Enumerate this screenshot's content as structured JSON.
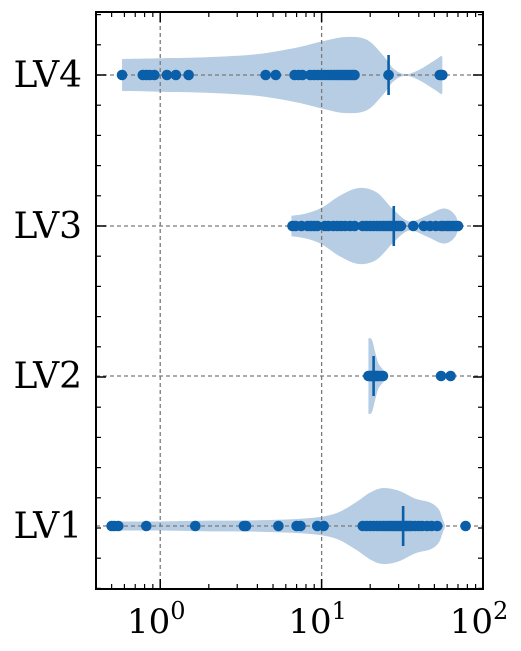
{
  "chart_data": {
    "type": "violin-strip",
    "orientation": "horizontal",
    "x_scale": "log",
    "xlim": [
      0.4,
      100
    ],
    "x_major_ticks": [
      1,
      10,
      100
    ],
    "x_tick_labels": [
      {
        "base": "10",
        "exp": "0"
      },
      {
        "base": "10",
        "exp": "1"
      },
      {
        "base": "10",
        "exp": "2"
      }
    ],
    "grid": true,
    "categories": [
      "LV4",
      "LV3",
      "LV2",
      "LV1"
    ],
    "colors": {
      "violin": "#b7cde3",
      "points": "#0b5ea8",
      "median": "#0b5ea8",
      "grid": "#7a7a7a",
      "axes": "#000000"
    },
    "series": [
      {
        "category": "LV4",
        "median": 26,
        "violin": [
          [
            0.58,
            0.42
          ],
          [
            1.0,
            0.44
          ],
          [
            2.0,
            0.47
          ],
          [
            4.0,
            0.55
          ],
          [
            7.0,
            0.72
          ],
          [
            10.0,
            0.88
          ],
          [
            14.0,
            1.0
          ],
          [
            19.0,
            0.93
          ],
          [
            24.0,
            0.52
          ],
          [
            28.0,
            0.16
          ],
          [
            33.0,
            0.02
          ],
          [
            40.0,
            0.13
          ],
          [
            50.0,
            0.38
          ],
          [
            55.0,
            0.5
          ],
          [
            56.0,
            0.45
          ]
        ],
        "points": [
          0.58,
          0.78,
          0.82,
          0.86,
          0.92,
          1.1,
          1.25,
          1.5,
          4.5,
          5.2,
          6.8,
          7.2,
          7.6,
          8.5,
          9.0,
          9.5,
          10.0,
          10.5,
          11.0,
          11.5,
          12.0,
          12.5,
          13.0,
          13.5,
          14.0,
          14.5,
          15.0,
          15.5,
          16.0,
          26.0,
          54.0,
          55.0,
          56.0
        ]
      },
      {
        "category": "LV3",
        "median": 28,
        "violin": [
          [
            6.5,
            0.27
          ],
          [
            8.0,
            0.33
          ],
          [
            10.0,
            0.48
          ],
          [
            13.0,
            0.8
          ],
          [
            17.0,
            1.0
          ],
          [
            22.0,
            0.88
          ],
          [
            28.0,
            0.42
          ],
          [
            35.0,
            0.12
          ],
          [
            45.0,
            0.28
          ],
          [
            55.0,
            0.45
          ],
          [
            62.0,
            0.42
          ],
          [
            68.0,
            0.25
          ],
          [
            70.0,
            0.05
          ]
        ],
        "points": [
          6.6,
          6.9,
          7.5,
          8.2,
          8.6,
          9.0,
          9.4,
          10.5,
          11.0,
          11.8,
          12.5,
          13.2,
          14.0,
          15.0,
          16.0,
          18.0,
          19.0,
          20.0,
          21.0,
          22.0,
          23.0,
          24.0,
          25.0,
          26.0,
          27.0,
          28.0,
          29.0,
          30.0,
          31.0,
          37.0,
          43.0,
          47.0,
          51.0,
          55.0,
          57.0,
          60.0,
          62.0,
          65.0,
          68.0,
          70.0
        ]
      },
      {
        "category": "LV2",
        "median": 21,
        "violin": [
          [
            19.5,
            1.0
          ],
          [
            20.5,
            0.95
          ],
          [
            21.5,
            0.62
          ],
          [
            22.5,
            0.33
          ],
          [
            24.0,
            0.17
          ],
          [
            25.0,
            0.05
          ]
        ],
        "points": [
          19.5,
          20.0,
          20.3,
          20.6,
          21.0,
          21.3,
          21.6,
          22.0,
          22.5,
          23.0,
          24.0,
          55.0,
          63.0
        ]
      },
      {
        "category": "LV1",
        "median": 32,
        "violin": [
          [
            0.5,
            0.12
          ],
          [
            1.0,
            0.12
          ],
          [
            2.0,
            0.14
          ],
          [
            4.0,
            0.15
          ],
          [
            8.0,
            0.2
          ],
          [
            12.0,
            0.32
          ],
          [
            16.0,
            0.6
          ],
          [
            20.0,
            0.88
          ],
          [
            24.0,
            1.0
          ],
          [
            30.0,
            0.93
          ],
          [
            38.0,
            0.72
          ],
          [
            47.0,
            0.62
          ],
          [
            53.0,
            0.45
          ],
          [
            56.0,
            0.2
          ],
          [
            58.0,
            0.03
          ]
        ],
        "points": [
          0.5,
          0.52,
          0.55,
          0.82,
          1.65,
          3.3,
          3.4,
          5.4,
          7.0,
          7.4,
          9.4,
          10.3,
          18.0,
          19.0,
          20.0,
          21.0,
          22.0,
          23.0,
          24.0,
          25.0,
          26.0,
          27.0,
          28.0,
          29.0,
          30.0,
          31.0,
          32.0,
          33.0,
          34.0,
          35.0,
          36.0,
          38.0,
          40.0,
          42.0,
          45.0,
          48.0,
          52.0,
          78.0
        ]
      }
    ]
  }
}
